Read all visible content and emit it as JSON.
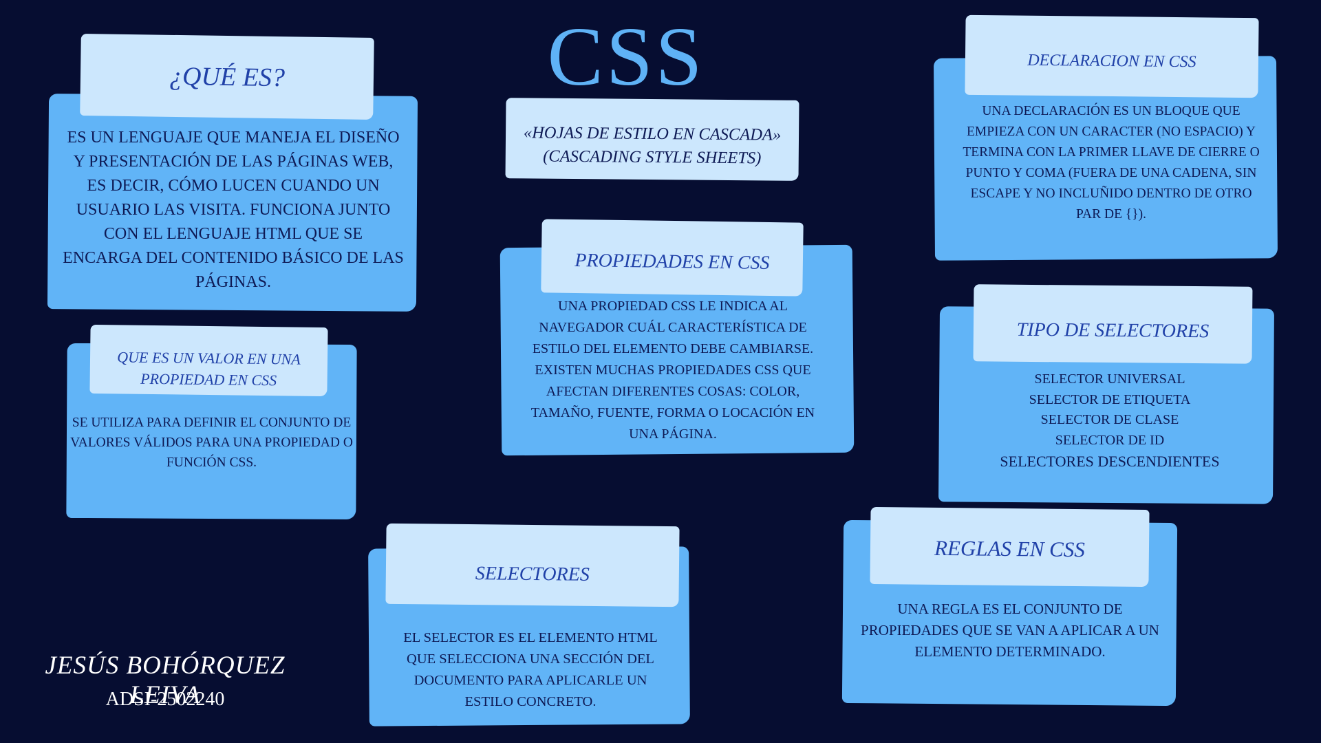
{
  "title": "CSS",
  "cards": {
    "que_es": {
      "heading": "¿QUÉ ES?",
      "body": "ES UN LENGUAJE QUE MANEJA EL DISEÑO Y PRESENTACIÓN DE LAS PÁGINAS WEB, ES DECIR, CÓMO LUCEN CUANDO UN USUARIO LAS VISITA. FUNCIONA JUNTO CON EL LENGUAJE HTML QUE SE ENCARGA DEL CONTENIDO BÁSICO DE LAS PÁGINAS."
    },
    "hojas": {
      "heading": "«HOJAS DE ESTILO EN CASCADA» (CASCADING STYLE SHEETS)"
    },
    "declaracion": {
      "heading": "DECLARACION EN CSS",
      "body": "UNA DECLARACIÓN ES UN BLOQUE QUE EMPIEZA CON UN CARACTER (NO ESPACIO) Y TERMINA CON LA PRIMER LLAVE DE CIERRE O PUNTO Y COMA (FUERA DE UNA CADENA, SIN ESCAPE Y NO INCLUÑIDO DENTRO DE OTRO PAR DE {})."
    },
    "valor": {
      "heading": "QUE ES UN VALOR EN UNA PROPIEDAD EN CSS",
      "body": "SE UTILIZA PARA DEFINIR EL CONJUNTO DE VALORES VÁLIDOS PARA UNA PROPIEDAD O FUNCIÓN CSS."
    },
    "propiedades": {
      "heading": "PROPIEDADES EN CSS",
      "body": "UNA PROPIEDAD CSS LE INDICA AL NAVEGADOR CUÁL CARACTERÍSTICA DE ESTILO DEL ELEMENTO DEBE CAMBIARSE. EXISTEN MUCHAS PROPIEDADES CSS QUE AFECTAN DIFERENTES COSAS: COLOR, TAMAÑO, FUENTE, FORMA O LOCACIÓN EN UNA PÁGINA."
    },
    "tipo_selectores": {
      "heading": "TIPO DE SELECTORES",
      "items": [
        "SELECTOR UNIVERSAL",
        "SELECTOR DE ETIQUETA",
        "SELECTOR DE CLASE",
        "SELECTOR DE ID",
        "SELECTORES DESCENDIENTES"
      ]
    },
    "selectores": {
      "heading": "SELECTORES",
      "body": "EL SELECTOR ES EL ELEMENTO HTML QUE SELECCIONA UNA SECCIÓN DEL DOCUMENTO PARA APLICARLE UN ESTILO CONCRETO."
    },
    "reglas": {
      "heading": "REGLAS EN CSS",
      "body": "UNA REGLA ES EL CONJUNTO DE PROPIEDADES QUE SE VAN A APLICAR A UN ELEMENTO DETERMINADO."
    }
  },
  "author": {
    "name": "JESÚS BOHÓRQUEZ LEIVA",
    "code": "ADSI-2502240"
  },
  "colors": {
    "background": "#060d31",
    "title": "#5fb2f6",
    "card": "#61b4f7",
    "tab": "#cce7fd",
    "heading_text": "#2041a8",
    "body_text": "#0e1a55"
  }
}
